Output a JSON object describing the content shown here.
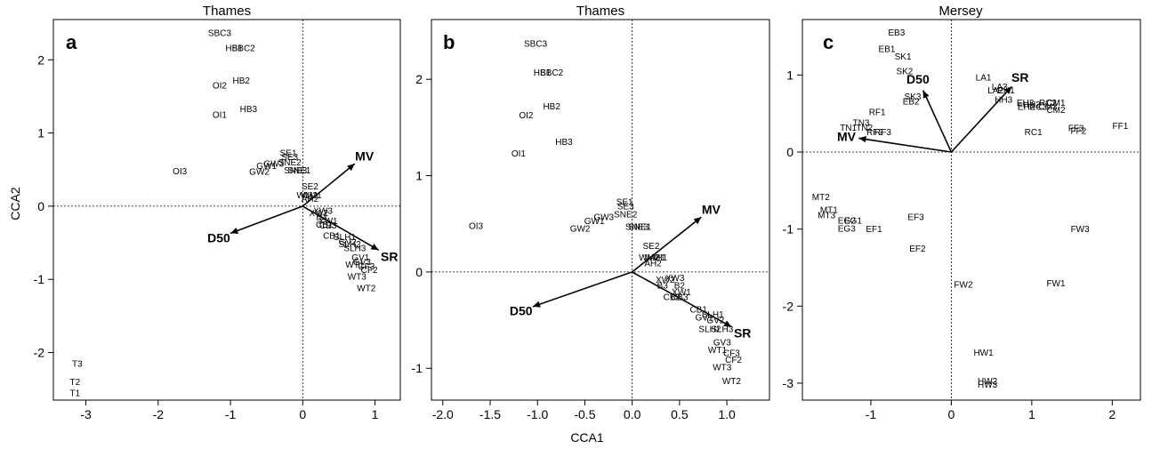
{
  "chart_data": [
    {
      "type": "scatter",
      "panel_label": "a",
      "title": "Thames",
      "ylabel": "CCA2",
      "xlim": [
        -3.45,
        1.35
      ],
      "ylim": [
        -2.65,
        2.55
      ],
      "xticks": [
        -3,
        -2,
        -1,
        0,
        1
      ],
      "yticks": [
        -2,
        -1,
        0,
        1,
        2
      ],
      "points": [
        {
          "label": "SBC3",
          "x": -1.15,
          "y": 2.37
        },
        {
          "label": "HB1",
          "x": -0.95,
          "y": 2.16
        },
        {
          "label": "SBC2",
          "x": -0.82,
          "y": 2.16
        },
        {
          "label": "OI2",
          "x": -1.15,
          "y": 1.65
        },
        {
          "label": "HB2",
          "x": -0.85,
          "y": 1.72
        },
        {
          "label": "OI1",
          "x": -1.15,
          "y": 1.25
        },
        {
          "label": "HB3",
          "x": -0.75,
          "y": 1.33
        },
        {
          "label": "OI3",
          "x": -1.7,
          "y": 0.48
        },
        {
          "label": "SE1",
          "x": -0.2,
          "y": 0.73
        },
        {
          "label": "SE3",
          "x": -0.18,
          "y": 0.67
        },
        {
          "label": "GW3",
          "x": -0.4,
          "y": 0.58
        },
        {
          "label": "GW1",
          "x": -0.5,
          "y": 0.55
        },
        {
          "label": "SNE2",
          "x": -0.18,
          "y": 0.6
        },
        {
          "label": "GW2",
          "x": -0.6,
          "y": 0.47
        },
        {
          "label": "SNE3",
          "x": -0.1,
          "y": 0.49
        },
        {
          "label": "SNE1",
          "x": -0.05,
          "y": 0.49
        },
        {
          "label": "SE2",
          "x": 0.1,
          "y": 0.27
        },
        {
          "label": "WM2",
          "x": 0.06,
          "y": 0.15
        },
        {
          "label": "WM1",
          "x": 0.12,
          "y": 0.15
        },
        {
          "label": "AH2",
          "x": 0.1,
          "y": 0.1
        },
        {
          "label": "XW3",
          "x": 0.28,
          "y": -0.06
        },
        {
          "label": "XW2",
          "x": 0.22,
          "y": -0.09
        },
        {
          "label": "B3",
          "x": 0.26,
          "y": -0.15
        },
        {
          "label": "XW1",
          "x": 0.35,
          "y": -0.2
        },
        {
          "label": "CB2",
          "x": 0.3,
          "y": -0.25
        },
        {
          "label": "CB3",
          "x": 0.35,
          "y": -0.26
        },
        {
          "label": "CB1",
          "x": 0.4,
          "y": -0.4
        },
        {
          "label": "SLH1",
          "x": 0.58,
          "y": -0.42
        },
        {
          "label": "SLH2",
          "x": 0.65,
          "y": -0.52
        },
        {
          "label": "GV2",
          "x": 0.62,
          "y": -0.49
        },
        {
          "label": "SLH3",
          "x": 0.72,
          "y": -0.57
        },
        {
          "label": "GV1",
          "x": 0.8,
          "y": -0.7
        },
        {
          "label": "GV3",
          "x": 0.82,
          "y": -0.76
        },
        {
          "label": "WT1",
          "x": 0.72,
          "y": -0.8
        },
        {
          "label": "CF3",
          "x": 0.88,
          "y": -0.82
        },
        {
          "label": "CF2",
          "x": 0.92,
          "y": -0.87
        },
        {
          "label": "WT3",
          "x": 0.75,
          "y": -0.96
        },
        {
          "label": "WT2",
          "x": 0.88,
          "y": -1.12
        },
        {
          "label": "T3",
          "x": -3.12,
          "y": -2.15
        },
        {
          "label": "T2",
          "x": -3.15,
          "y": -2.4
        },
        {
          "label": "T1",
          "x": -3.15,
          "y": -2.55
        }
      ],
      "vectors": [
        {
          "name": "MV",
          "x": 0.72,
          "y": 0.58
        },
        {
          "name": "D50",
          "x": -1.0,
          "y": -0.37
        },
        {
          "name": "SR",
          "x": 1.05,
          "y": -0.6
        }
      ]
    },
    {
      "type": "scatter",
      "panel_label": "b",
      "title": "Thames",
      "xlabel": "CCA1",
      "xlim": [
        -2.12,
        1.45
      ],
      "ylim": [
        -1.33,
        2.62
      ],
      "xticks": [
        -2.0,
        -1.5,
        -1.0,
        -0.5,
        0.0,
        0.5,
        1.0
      ],
      "xticklabels": [
        "-2.0",
        "-1.5",
        "-1.0",
        "-0.5",
        "0.0",
        "0.5",
        "1.0"
      ],
      "yticks": [
        -1,
        0,
        1,
        2
      ],
      "points": [
        {
          "label": "SBC3",
          "x": -1.02,
          "y": 2.37
        },
        {
          "label": "HB1",
          "x": -0.95,
          "y": 2.07
        },
        {
          "label": "SBC2",
          "x": -0.85,
          "y": 2.07
        },
        {
          "label": "HB2",
          "x": -0.85,
          "y": 1.72
        },
        {
          "label": "OI2",
          "x": -1.12,
          "y": 1.63
        },
        {
          "label": "HB3",
          "x": -0.72,
          "y": 1.35
        },
        {
          "label": "OI1",
          "x": -1.2,
          "y": 1.23
        },
        {
          "label": "OI3",
          "x": -1.65,
          "y": 0.48
        },
        {
          "label": "SE1",
          "x": -0.08,
          "y": 0.73
        },
        {
          "label": "SE3",
          "x": -0.07,
          "y": 0.68
        },
        {
          "label": "GW3",
          "x": -0.3,
          "y": 0.57
        },
        {
          "label": "SNE2",
          "x": -0.07,
          "y": 0.6
        },
        {
          "label": "GW1",
          "x": -0.4,
          "y": 0.53
        },
        {
          "label": "GW2",
          "x": -0.55,
          "y": 0.45
        },
        {
          "label": "SNE3",
          "x": 0.05,
          "y": 0.47
        },
        {
          "label": "SNE1",
          "x": 0.08,
          "y": 0.47
        },
        {
          "label": "SE2",
          "x": 0.2,
          "y": 0.27
        },
        {
          "label": "WM2",
          "x": 0.18,
          "y": 0.15
        },
        {
          "label": "WM1",
          "x": 0.24,
          "y": 0.15
        },
        {
          "label": "AH1",
          "x": 0.28,
          "y": 0.15
        },
        {
          "label": "AH2",
          "x": 0.22,
          "y": 0.09
        },
        {
          "label": "XW2",
          "x": 0.35,
          "y": -0.08
        },
        {
          "label": "XW3",
          "x": 0.45,
          "y": -0.06
        },
        {
          "label": "B3",
          "x": 0.32,
          "y": -0.14
        },
        {
          "label": "B2",
          "x": 0.5,
          "y": -0.14
        },
        {
          "label": "XW1",
          "x": 0.52,
          "y": -0.21
        },
        {
          "label": "CB2",
          "x": 0.42,
          "y": -0.26
        },
        {
          "label": "CB3",
          "x": 0.5,
          "y": -0.26
        },
        {
          "label": "CB1",
          "x": 0.7,
          "y": -0.39
        },
        {
          "label": "SLH1",
          "x": 0.85,
          "y": -0.44
        },
        {
          "label": "GV1",
          "x": 0.76,
          "y": -0.47
        },
        {
          "label": "GV2",
          "x": 0.88,
          "y": -0.5
        },
        {
          "label": "SLH2",
          "x": 0.82,
          "y": -0.59
        },
        {
          "label": "SLH3",
          "x": 0.95,
          "y": -0.59
        },
        {
          "label": "GV3",
          "x": 0.95,
          "y": -0.73
        },
        {
          "label": "WT1",
          "x": 0.9,
          "y": -0.81
        },
        {
          "label": "CF3",
          "x": 1.05,
          "y": -0.84
        },
        {
          "label": "CF2",
          "x": 1.07,
          "y": -0.91
        },
        {
          "label": "WT3",
          "x": 0.95,
          "y": -0.99
        },
        {
          "label": "WT2",
          "x": 1.05,
          "y": -1.13
        }
      ],
      "vectors": [
        {
          "name": "MV",
          "x": 0.73,
          "y": 0.57
        },
        {
          "name": "D50",
          "x": -1.05,
          "y": -0.36
        },
        {
          "name": "SR",
          "x": 1.05,
          "y": -0.57
        }
      ]
    },
    {
      "type": "scatter",
      "panel_label": "c",
      "title": "Mersey",
      "xlim": [
        -1.85,
        2.35
      ],
      "ylim": [
        -3.22,
        1.72
      ],
      "xticks": [
        -1,
        0,
        1,
        2
      ],
      "yticks": [
        -3,
        -2,
        -1,
        0,
        1
      ],
      "points": [
        {
          "label": "EB3",
          "x": -0.68,
          "y": 1.55
        },
        {
          "label": "EB1",
          "x": -0.8,
          "y": 1.34
        },
        {
          "label": "SK1",
          "x": -0.6,
          "y": 1.24
        },
        {
          "label": "SK2",
          "x": -0.58,
          "y": 1.05
        },
        {
          "label": "LA1",
          "x": 0.4,
          "y": 0.97
        },
        {
          "label": "LA3",
          "x": 0.6,
          "y": 0.85
        },
        {
          "label": "LA2",
          "x": 0.55,
          "y": 0.8
        },
        {
          "label": "EH1",
          "x": 0.68,
          "y": 0.8
        },
        {
          "label": "SK3",
          "x": -0.48,
          "y": 0.72
        },
        {
          "label": "EB2",
          "x": -0.5,
          "y": 0.66
        },
        {
          "label": "HH3",
          "x": 0.65,
          "y": 0.68
        },
        {
          "label": "EH3",
          "x": 0.92,
          "y": 0.64
        },
        {
          "label": "HH2",
          "x": 1.0,
          "y": 0.62
        },
        {
          "label": "EH2",
          "x": 0.93,
          "y": 0.59
        },
        {
          "label": "RC3",
          "x": 1.08,
          "y": 0.59
        },
        {
          "label": "RC2",
          "x": 1.2,
          "y": 0.64
        },
        {
          "label": "CM3",
          "x": 1.2,
          "y": 0.59
        },
        {
          "label": "CM1",
          "x": 1.3,
          "y": 0.64
        },
        {
          "label": "CM2",
          "x": 1.3,
          "y": 0.55
        },
        {
          "label": "RF1",
          "x": -0.92,
          "y": 0.52
        },
        {
          "label": "TN3",
          "x": -1.12,
          "y": 0.38
        },
        {
          "label": "TN1",
          "x": -1.28,
          "y": 0.32
        },
        {
          "label": "TN2",
          "x": -1.08,
          "y": 0.32
        },
        {
          "label": "RF2",
          "x": -0.95,
          "y": 0.26
        },
        {
          "label": "RF3",
          "x": -0.85,
          "y": 0.26
        },
        {
          "label": "FF3",
          "x": 1.55,
          "y": 0.31
        },
        {
          "label": "FF2",
          "x": 1.58,
          "y": 0.28
        },
        {
          "label": "FF1",
          "x": 2.1,
          "y": 0.34
        },
        {
          "label": "RC1",
          "x": 1.02,
          "y": 0.26
        },
        {
          "label": "MT2",
          "x": -1.62,
          "y": -0.58
        },
        {
          "label": "MT1",
          "x": -1.52,
          "y": -0.75
        },
        {
          "label": "MT3",
          "x": -1.55,
          "y": -0.82
        },
        {
          "label": "EG2",
          "x": -1.3,
          "y": -0.89
        },
        {
          "label": "EG1",
          "x": -1.22,
          "y": -0.89
        },
        {
          "label": "EG3",
          "x": -1.3,
          "y": -0.99
        },
        {
          "label": "EF3",
          "x": -0.44,
          "y": -0.84
        },
        {
          "label": "EF1",
          "x": -0.96,
          "y": -1.0
        },
        {
          "label": "EF2",
          "x": -0.42,
          "y": -1.25
        },
        {
          "label": "FW3",
          "x": 1.6,
          "y": -1.0
        },
        {
          "label": "FW2",
          "x": 0.15,
          "y": -1.72
        },
        {
          "label": "FW1",
          "x": 1.3,
          "y": -1.7
        },
        {
          "label": "HW1",
          "x": 0.4,
          "y": -2.6
        },
        {
          "label": "HW2",
          "x": 0.45,
          "y": -2.97
        },
        {
          "label": "HW3",
          "x": 0.45,
          "y": -3.02
        }
      ],
      "vectors": [
        {
          "name": "SR",
          "x": 0.75,
          "y": 0.85
        },
        {
          "name": "D50",
          "x": -0.35,
          "y": 0.8
        },
        {
          "name": "MV",
          "x": -1.15,
          "y": 0.18
        }
      ]
    }
  ]
}
